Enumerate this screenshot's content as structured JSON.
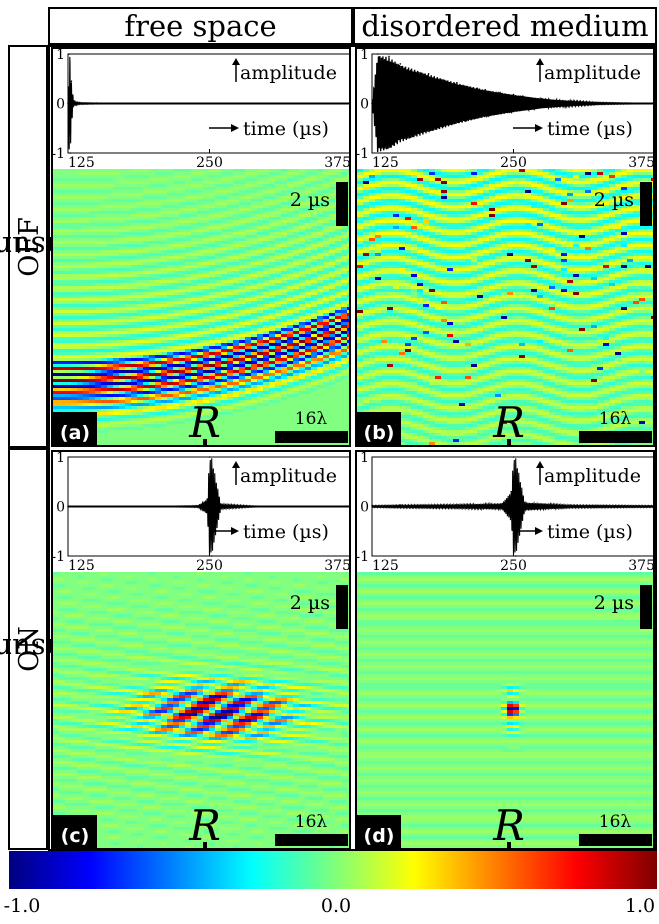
{
  "columns": [
    "free space",
    "disordered medium"
  ],
  "rows": [
    "metasurface",
    "metasurface"
  ],
  "row_states": [
    "OFF",
    "ON"
  ],
  "insets": {
    "y_ticks": [
      "1",
      "0",
      "-1"
    ],
    "x_ticks": [
      "125",
      "250",
      "375"
    ],
    "amplitude_label": "amplitude",
    "time_label": "time (µs)"
  },
  "fields": {
    "time_scale": "2 µs",
    "length_scale": "16λ",
    "receiver_label": "R"
  },
  "panel_labels": [
    "(a)",
    "(b)",
    "(c)",
    "(d)"
  ],
  "colorbar": {
    "ticks": [
      "-1.0",
      "0.0",
      "1.0"
    ],
    "colormap": "jet",
    "colors": [
      "#00007f",
      "#0000ff",
      "#007fff",
      "#00ffff",
      "#7cff7c",
      "#ffff00",
      "#ff7f00",
      "#ff0000",
      "#7f0000"
    ]
  },
  "chart_data": [
    {
      "type": "line",
      "panel": "(a)",
      "x": [
        125,
        126,
        127,
        128,
        130,
        135,
        150,
        200,
        250,
        300,
        375
      ],
      "values": [
        0.0,
        1.0,
        -1.0,
        0.45,
        0.05,
        0.02,
        0.01,
        0.0,
        0.0,
        0.0,
        0.0
      ],
      "xlim": [
        125,
        375
      ],
      "ylim": [
        -1,
        1
      ],
      "xlabel": "time (µs)",
      "ylabel": "amplitude"
    },
    {
      "type": "line",
      "panel": "(b)",
      "x": [
        125,
        130,
        140,
        150,
        175,
        200,
        225,
        250,
        275,
        300,
        325,
        350,
        375
      ],
      "values": [
        0.0,
        1.0,
        0.95,
        0.8,
        0.6,
        0.42,
        0.28,
        0.18,
        0.1,
        0.05,
        0.02,
        0.01,
        0.0
      ],
      "xlim": [
        125,
        375
      ],
      "ylim": [
        -1,
        1
      ],
      "xlabel": "time (µs)",
      "ylabel": "amplitude"
    },
    {
      "type": "line",
      "panel": "(c)",
      "x": [
        125,
        200,
        240,
        248,
        250,
        252,
        260,
        300,
        375
      ],
      "values": [
        0.0,
        0.0,
        0.02,
        0.15,
        1.0,
        -1.0,
        0.05,
        0.0,
        0.0
      ],
      "xlim": [
        125,
        375
      ],
      "ylim": [
        -1,
        1
      ],
      "xlabel": "time (µs)",
      "ylabel": "amplitude"
    },
    {
      "type": "line",
      "panel": "(d)",
      "x": [
        125,
        150,
        200,
        240,
        248,
        250,
        252,
        260,
        300,
        375
      ],
      "values": [
        0.02,
        0.03,
        0.04,
        0.06,
        0.3,
        1.0,
        -1.0,
        0.08,
        0.03,
        0.02
      ],
      "xlim": [
        125,
        375
      ],
      "ylim": [
        -1,
        1
      ],
      "xlabel": "time (µs)",
      "ylabel": "amplitude"
    }
  ]
}
